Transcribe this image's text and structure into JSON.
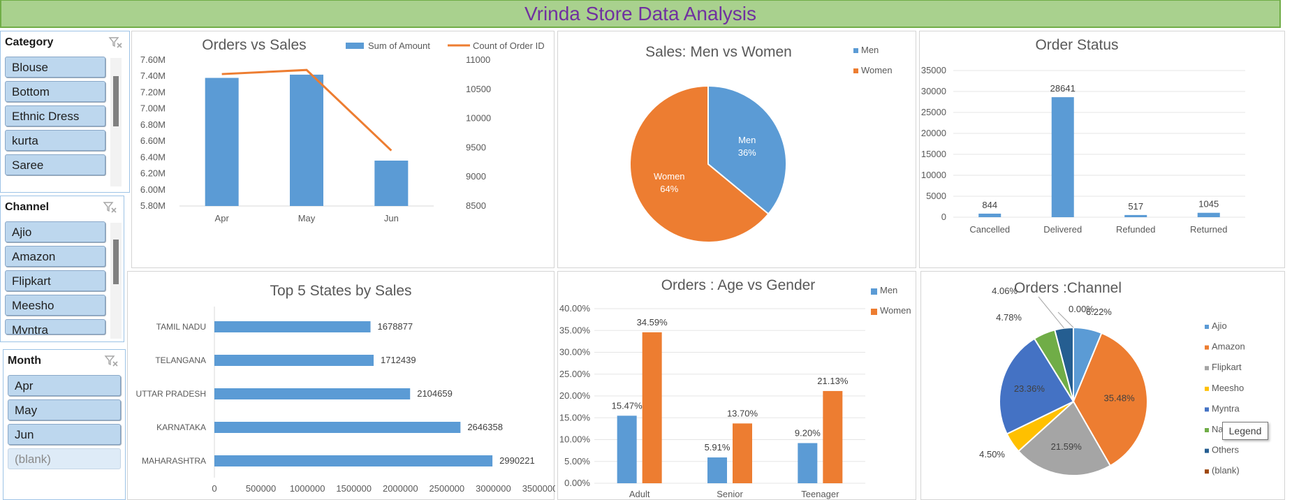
{
  "title": "Vrinda Store Data Analysis",
  "colors": {
    "blue": "#5b9bd5",
    "orange": "#ed7d31",
    "gray": "#a5a5a5",
    "yellow": "#ffc000",
    "darkblue": "#4472c4",
    "green": "#70ad47",
    "navy": "#255e91",
    "brown": "#9e480e",
    "title_bg": "#a9d18e",
    "title_text": "#7030a0"
  },
  "slicers": {
    "category": {
      "title": "Category",
      "items": [
        "Blouse",
        "Bottom",
        "Ethnic Dress",
        "kurta",
        "Saree"
      ]
    },
    "channel": {
      "title": "Channel",
      "items": [
        "Ajio",
        "Amazon",
        "Flipkart",
        "Meesho",
        "Myntra"
      ]
    },
    "month": {
      "title": "Month",
      "items": [
        "Apr",
        "May",
        "Jun",
        "(blank)"
      ]
    }
  },
  "tooltip": "Legend",
  "charts": {
    "orders_vs_sales": {
      "title": "Orders vs Sales",
      "type": "bar+line",
      "categories": [
        "Apr",
        "May",
        "Jun"
      ],
      "series": [
        {
          "name": "Sum of Amount",
          "values": [
            7.38,
            7.42,
            6.36
          ],
          "color": "#5b9bd5"
        },
        {
          "name": "Count of Order ID",
          "values": [
            10760,
            10830,
            9450
          ],
          "color": "#ed7d31"
        }
      ],
      "ylabels_left": [
        "7.60M",
        "7.40M",
        "7.20M",
        "7.00M",
        "6.80M",
        "6.60M",
        "6.40M",
        "6.20M",
        "6.00M",
        "5.80M"
      ],
      "ylim_left": [
        5.8,
        7.6
      ],
      "ylabels_right": [
        "11000",
        "10500",
        "10000",
        "9500",
        "9000",
        "8500"
      ],
      "ylim_right": [
        8500,
        11000
      ]
    },
    "men_vs_women": {
      "title": "Sales: Men vs Women",
      "type": "pie",
      "slices": [
        {
          "name": "Men",
          "label": "Men",
          "pct_label": "36%",
          "value": 36,
          "color": "#5b9bd5"
        },
        {
          "name": "Women",
          "label": "Women",
          "pct_label": "64%",
          "value": 64,
          "color": "#ed7d31"
        }
      ],
      "legend": [
        "Men",
        "Women"
      ]
    },
    "order_status": {
      "title": "Order Status",
      "type": "bar",
      "categories": [
        "Cancelled",
        "Delivered",
        "Refunded",
        "Returned"
      ],
      "values": [
        844,
        28641,
        517,
        1045
      ],
      "value_labels": [
        "844",
        "28641",
        "517",
        "1045"
      ],
      "ylabels": [
        "35000",
        "30000",
        "25000",
        "20000",
        "15000",
        "10000",
        "5000",
        "0"
      ],
      "ylim": [
        0,
        35000
      ]
    },
    "top_states": {
      "title": "Top 5 States by Sales",
      "type": "bar",
      "categories": [
        "TAMIL NADU",
        "TELANGANA",
        "UTTAR PRADESH",
        "KARNATAKA",
        "MAHARASHTRA"
      ],
      "values": [
        1678877,
        1712439,
        2104659,
        2646358,
        2990221
      ],
      "value_labels": [
        "1678877",
        "1712439",
        "2104659",
        "2646358",
        "2990221"
      ],
      "xlabels": [
        "0",
        "500000",
        "1000000",
        "1500000",
        "2000000",
        "2500000",
        "3000000",
        "3500000"
      ],
      "xlim": [
        0,
        3500000
      ]
    },
    "age_vs_gender": {
      "title": "Orders : Age vs Gender",
      "type": "bar",
      "categories": [
        "Adult",
        "Senior",
        "Teenager"
      ],
      "series": [
        {
          "name": "Men",
          "values": [
            15.47,
            5.91,
            9.2
          ],
          "labels": [
            "15.47%",
            "5.91%",
            "9.20%"
          ],
          "color": "#5b9bd5"
        },
        {
          "name": "Women",
          "values": [
            34.59,
            13.7,
            21.13
          ],
          "labels": [
            "34.59%",
            "13.70%",
            "21.13%"
          ],
          "color": "#ed7d31"
        }
      ],
      "ylabels": [
        "40.00%",
        "35.00%",
        "30.00%",
        "25.00%",
        "20.00%",
        "15.00%",
        "10.00%",
        "5.00%",
        "0.00%"
      ],
      "ylim": [
        0,
        40
      ]
    },
    "orders_channel": {
      "title": "Orders :Channel",
      "type": "pie",
      "slices": [
        {
          "name": "Ajio",
          "value": 6.22,
          "label": "6.22%",
          "color": "#5b9bd5"
        },
        {
          "name": "Amazon",
          "value": 35.48,
          "label": "35.48%",
          "color": "#ed7d31"
        },
        {
          "name": "Flipkart",
          "value": 21.59,
          "label": "21.59%",
          "color": "#a5a5a5"
        },
        {
          "name": "Meesho",
          "value": 4.5,
          "label": "4.50%",
          "color": "#ffc000"
        },
        {
          "name": "Myntra",
          "value": 23.36,
          "label": "23.36%",
          "color": "#4472c4"
        },
        {
          "name": "Nalli",
          "value": 4.78,
          "label": "4.78%",
          "color": "#70ad47"
        },
        {
          "name": "Others",
          "value": 4.06,
          "label": "4.06%",
          "color": "#255e91"
        },
        {
          "name": "(blank)",
          "value": 0.0,
          "label": "0.00%",
          "color": "#9e480e"
        }
      ],
      "legend": [
        "Ajio",
        "Amazon",
        "Flipkart",
        "Meesho",
        "Myntra",
        "Nalli",
        "Others",
        "(blank)"
      ]
    }
  }
}
